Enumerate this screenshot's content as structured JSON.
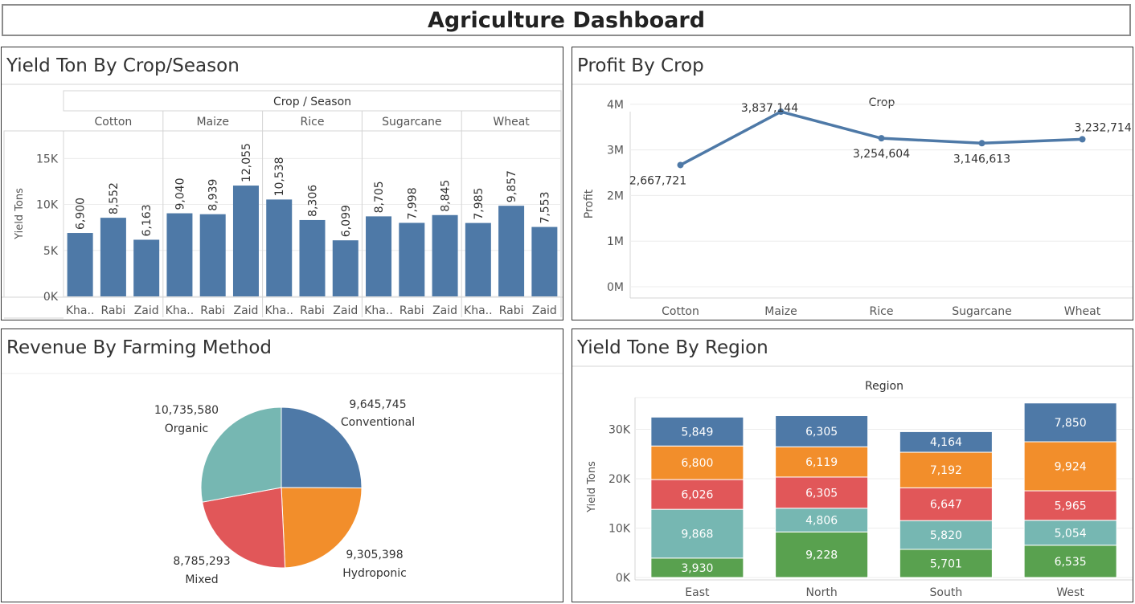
{
  "page": {
    "title": "Agriculture Dashboard"
  },
  "colors": {
    "blue": "#4e79a7",
    "orange": "#f28e2b",
    "red": "#e15759",
    "teal": "#76b7b2",
    "green": "#59a14f"
  },
  "chart_data": [
    {
      "id": "yield_by_crop_season",
      "type": "bar",
      "title": "Yield Ton By Crop/Season",
      "column_header": "Crop / Season",
      "ylabel": "Yield Tons",
      "ylim": [
        0,
        15000
      ],
      "yticks": [
        "0K",
        "5K",
        "10K",
        "15K"
      ],
      "groups": [
        {
          "name": "Cotton",
          "seasons": [
            "Kha..",
            "Rabi",
            "Zaid"
          ],
          "values": [
            6900,
            8552,
            6163
          ],
          "labels": [
            "6,900",
            "8,552",
            "6,163"
          ]
        },
        {
          "name": "Maize",
          "seasons": [
            "Kha..",
            "Rabi",
            "Zaid"
          ],
          "values": [
            9040,
            8939,
            12055
          ],
          "labels": [
            "9,040",
            "8,939",
            "12,055"
          ]
        },
        {
          "name": "Rice",
          "seasons": [
            "Kha..",
            "Rabi",
            "Zaid"
          ],
          "values": [
            10538,
            8306,
            6099
          ],
          "labels": [
            "10,538",
            "8,306",
            "6,099"
          ]
        },
        {
          "name": "Sugarcane",
          "seasons": [
            "Kha..",
            "Rabi",
            "Zaid"
          ],
          "values": [
            8705,
            7998,
            8845
          ],
          "labels": [
            "8,705",
            "7,998",
            "8,845"
          ]
        },
        {
          "name": "Wheat",
          "seasons": [
            "Kha..",
            "Rabi",
            "Zaid"
          ],
          "values": [
            7985,
            9857,
            7553
          ],
          "labels": [
            "7,985",
            "9,857",
            "7,553"
          ]
        }
      ]
    },
    {
      "id": "profit_by_crop",
      "type": "line",
      "title": "Profit By Crop",
      "header": "Crop",
      "ylabel": "Profit",
      "ylim": [
        0,
        4000000
      ],
      "yticks": [
        "0M",
        "1M",
        "2M",
        "3M",
        "4M"
      ],
      "categories": [
        "Cotton",
        "Maize",
        "Rice",
        "Sugarcane",
        "Wheat"
      ],
      "values": [
        2667721,
        3837144,
        3254604,
        3146613,
        3232714
      ],
      "labels": [
        "2,667,721",
        "3,837,144",
        "3,254,604",
        "3,146,613",
        "3,232,714"
      ]
    },
    {
      "id": "revenue_by_method",
      "type": "pie",
      "title": "Revenue By Farming Method",
      "slices": [
        {
          "name": "Conventional",
          "value": 9645745,
          "label": "9,645,745",
          "color": "#4e79a7"
        },
        {
          "name": "Hydroponic",
          "value": 9305398,
          "label": "9,305,398",
          "color": "#f28e2b"
        },
        {
          "name": "Mixed",
          "value": 8785293,
          "label": "8,785,293",
          "color": "#e15759"
        },
        {
          "name": "Organic",
          "value": 10735580,
          "label": "10,735,580",
          "color": "#76b7b2"
        }
      ]
    },
    {
      "id": "yield_by_region",
      "type": "bar",
      "stacked": true,
      "title": "Yield Tone By Region",
      "header": "Region",
      "ylabel": "Yield Tons",
      "ylim": [
        0,
        35000
      ],
      "yticks": [
        "0K",
        "10K",
        "20K",
        "30K"
      ],
      "categories": [
        "East",
        "North",
        "South",
        "West"
      ],
      "series": [
        {
          "color": "#59a14f",
          "values": [
            3930,
            9228,
            5701,
            6535
          ],
          "labels": [
            "3,930",
            "9,228",
            "5,701",
            "6,535"
          ]
        },
        {
          "color": "#76b7b2",
          "values": [
            9868,
            4806,
            5820,
            5054
          ],
          "labels": [
            "9,868",
            "4,806",
            "5,820",
            "5,054"
          ]
        },
        {
          "color": "#e15759",
          "values": [
            6026,
            6305,
            6647,
            5965
          ],
          "labels": [
            "6,026",
            "6,305",
            "6,647",
            "5,965"
          ]
        },
        {
          "color": "#f28e2b",
          "values": [
            6800,
            6119,
            7192,
            9924
          ],
          "labels": [
            "6,800",
            "6,119",
            "7,192",
            "9,924"
          ]
        },
        {
          "color": "#4e79a7",
          "values": [
            5849,
            6305,
            4164,
            7850
          ],
          "labels": [
            "5,849",
            "6,305",
            "4,164",
            "7,850"
          ]
        }
      ]
    }
  ]
}
